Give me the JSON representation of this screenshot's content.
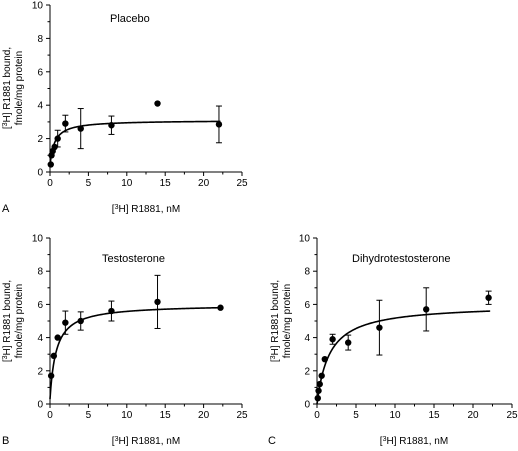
{
  "chart_data": [
    {
      "type": "scatter",
      "panel_label": "A",
      "title": "Placebo",
      "xlabel_pre": "[",
      "xlabel_sup": "3",
      "xlabel_post": "H] R1881, nM",
      "ylabel_line1_pre": "[",
      "ylabel_line1_sup": "3",
      "ylabel_line1_post": "H] R1881 bound,",
      "ylabel_line2": "fmole/mg protein",
      "xlim": [
        0,
        25
      ],
      "ylim": [
        0,
        10
      ],
      "xticks": [
        0,
        5,
        10,
        15,
        20,
        25
      ],
      "yticks": [
        0,
        2,
        4,
        6,
        8,
        10
      ],
      "grid": false,
      "series": [
        {
          "points": [
            {
              "x": 0.1,
              "y": 0.45,
              "err": 0
            },
            {
              "x": 0.2,
              "y": 1.0,
              "err": 0
            },
            {
              "x": 0.35,
              "y": 1.25,
              "err": 0
            },
            {
              "x": 0.6,
              "y": 1.5,
              "err": 0
            },
            {
              "x": 1.0,
              "y": 2.0,
              "err": 0.5
            },
            {
              "x": 2.0,
              "y": 2.9,
              "err": 0.5
            },
            {
              "x": 4.0,
              "y": 2.6,
              "err": 1.2
            },
            {
              "x": 8.0,
              "y": 2.8,
              "err": 0.55
            },
            {
              "x": 14.0,
              "y": 4.1,
              "err": 0
            },
            {
              "x": 22.0,
              "y": 2.85,
              "err": 1.1
            }
          ],
          "fit": {
            "bmax": 3.1,
            "kd": 0.6,
            "offset": 0.4
          }
        }
      ]
    },
    {
      "type": "scatter",
      "panel_label": "B",
      "title": "Testosterone",
      "xlabel_pre": "[",
      "xlabel_sup": "3",
      "xlabel_post": "H] R1881, nM",
      "ylabel_line1_pre": "[",
      "ylabel_line1_sup": "3",
      "ylabel_line1_post": "H] R1881 bound,",
      "ylabel_line2": "fmole/mg protein",
      "xlim": [
        0,
        25
      ],
      "ylim": [
        0,
        10
      ],
      "xticks": [
        0,
        5,
        10,
        15,
        20,
        25
      ],
      "yticks": [
        0,
        2,
        4,
        6,
        8,
        10
      ],
      "grid": false,
      "series": [
        {
          "points": [
            {
              "x": 0.15,
              "y": 1.7,
              "err": 0
            },
            {
              "x": 0.5,
              "y": 2.9,
              "err": 0
            },
            {
              "x": 1.0,
              "y": 4.0,
              "err": 0
            },
            {
              "x": 2.0,
              "y": 4.9,
              "err": 0.7
            },
            {
              "x": 4.0,
              "y": 5.0,
              "err": 0.55
            },
            {
              "x": 8.0,
              "y": 5.6,
              "err": 0.6
            },
            {
              "x": 14.0,
              "y": 6.15,
              "err": 1.6
            },
            {
              "x": 22.2,
              "y": 5.8,
              "err": 0
            }
          ],
          "fit": {
            "bmax": 6.0,
            "kd": 0.8,
            "offset": 0.3
          }
        }
      ]
    },
    {
      "type": "scatter",
      "panel_label": "C",
      "title": "Dihydrotestosterone",
      "xlabel_pre": "[",
      "xlabel_sup": "3",
      "xlabel_post": "H] R1881, nM",
      "ylabel_line1_pre": "[",
      "ylabel_line1_sup": "3",
      "ylabel_line1_post": "H] R1881 bound,",
      "ylabel_line2": "fmole/mg protein",
      "xlim": [
        0,
        25
      ],
      "ylim": [
        0,
        10
      ],
      "xticks": [
        0,
        5,
        10,
        15,
        20,
        25
      ],
      "yticks": [
        0,
        2,
        4,
        6,
        8,
        10
      ],
      "grid": false,
      "series": [
        {
          "points": [
            {
              "x": 0.1,
              "y": 0.35,
              "err": 0
            },
            {
              "x": 0.2,
              "y": 0.8,
              "err": 0
            },
            {
              "x": 0.35,
              "y": 1.2,
              "err": 0
            },
            {
              "x": 0.6,
              "y": 1.7,
              "err": 0
            },
            {
              "x": 1.0,
              "y": 2.7,
              "err": 0
            },
            {
              "x": 2.0,
              "y": 3.9,
              "err": 0.3
            },
            {
              "x": 4.0,
              "y": 3.7,
              "err": 0.45
            },
            {
              "x": 8.0,
              "y": 4.6,
              "err": 1.65
            },
            {
              "x": 14.0,
              "y": 5.7,
              "err": 1.3
            },
            {
              "x": 22.0,
              "y": 6.4,
              "err": 0.4
            }
          ],
          "fit": {
            "bmax": 6.0,
            "kd": 1.6,
            "offset": 0.0
          }
        }
      ]
    }
  ]
}
